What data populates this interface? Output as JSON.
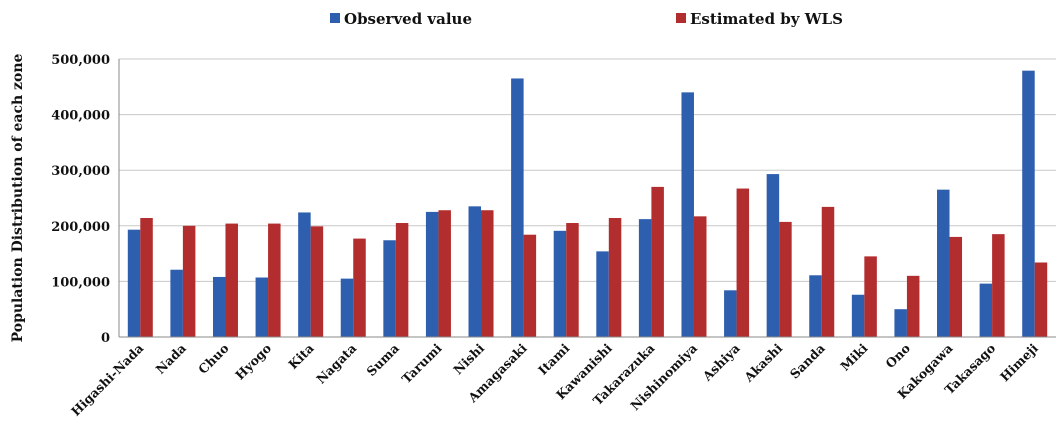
{
  "chart_data": {
    "type": "bar",
    "title": "",
    "xlabel": "",
    "ylabel": "Population Distribution of each zone",
    "ylim": [
      0,
      500000
    ],
    "yticks": [
      "0",
      "100,000",
      "200,000",
      "300,000",
      "400,000",
      "500,000"
    ],
    "ytick_values": [
      0,
      100000,
      200000,
      300000,
      400000,
      500000
    ],
    "grid": true,
    "legend_position": "top",
    "categories": [
      "Higashi-Nada",
      "Nada",
      "Chuo",
      "Hyogo",
      "Kita",
      "Nagata",
      "Suma",
      "Tarumi",
      "Nishi",
      "Amagasaki",
      "Itami",
      "Kawanishi",
      "Takarazuka",
      "Nishinomiya",
      "Ashiya",
      "Akashi",
      "Sanda",
      "Miki",
      "Ono",
      "Kakogawa",
      "Takasago",
      "Himeji"
    ],
    "series": [
      {
        "name": "Observed value",
        "color": "#2E5FAE",
        "values": [
          193000,
          121000,
          108000,
          107000,
          224000,
          105000,
          174000,
          225000,
          235000,
          465000,
          191000,
          154000,
          212000,
          440000,
          84000,
          293000,
          111000,
          76000,
          50000,
          265000,
          96000,
          479000
        ]
      },
      {
        "name": "Estimated by WLS",
        "color": "#B22D2D",
        "values": [
          214000,
          200000,
          204000,
          204000,
          199000,
          177000,
          205000,
          228000,
          228000,
          184000,
          205000,
          214000,
          270000,
          217000,
          267000,
          207000,
          234000,
          145000,
          110000,
          180000,
          185000,
          134000
        ]
      }
    ]
  }
}
